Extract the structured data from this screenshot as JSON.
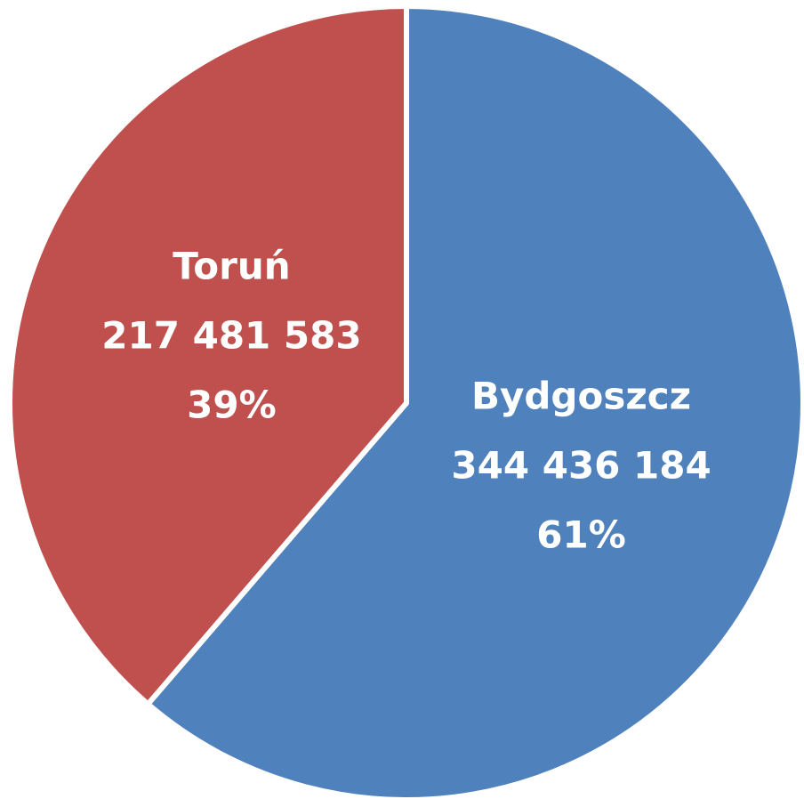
{
  "chart_data": {
    "type": "pie",
    "categories": [
      "Bydgoszcz",
      "Toruń"
    ],
    "values": [
      344436184,
      217481583
    ],
    "value_labels": [
      "344 436 184",
      "217 481 583"
    ],
    "percents": [
      61,
      39
    ],
    "percent_labels": [
      "61%",
      "39%"
    ],
    "colors": [
      "#4f81bd",
      "#c0504d"
    ]
  }
}
